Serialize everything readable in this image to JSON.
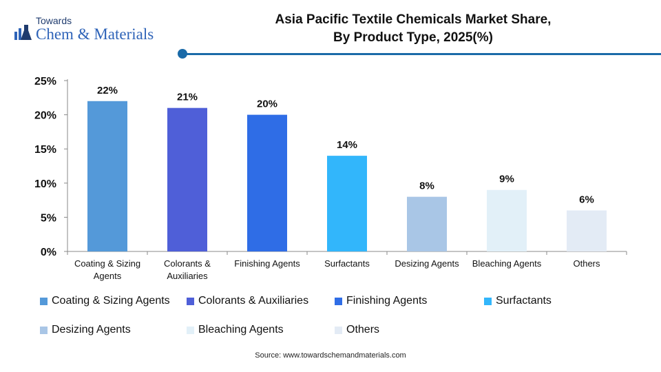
{
  "brand": {
    "small": "Towards",
    "big": "Chem & Materials"
  },
  "title_line1": "Asia Pacific Textile Chemicals Market Share,",
  "title_line2": "By Product Type, 2025(%)",
  "source": "Source: www.towardschemandmaterials.com",
  "chart_data": {
    "type": "bar",
    "categories": [
      "Coating & Sizing Agents",
      "Colorants & Auxiliaries",
      "Finishing Agents",
      "Surfactants",
      "Desizing Agents",
      "Bleaching Agents",
      "Others"
    ],
    "category_tick_lines": [
      [
        "Coating & Sizing",
        "Agents"
      ],
      [
        "Colorants &",
        "Auxiliaries"
      ],
      [
        "Finishing Agents"
      ],
      [
        "Surfactants"
      ],
      [
        "Desizing Agents"
      ],
      [
        "Bleaching Agents"
      ],
      [
        "Others"
      ]
    ],
    "values": [
      22,
      21,
      20,
      14,
      8,
      9,
      6
    ],
    "data_labels": [
      "22%",
      "21%",
      "20%",
      "14%",
      "8%",
      "9%",
      "6%"
    ],
    "colors": [
      "#5499d9",
      "#4f5fd8",
      "#2f6de6",
      "#32b6fb",
      "#a9c6e6",
      "#e2f0f8",
      "#e3ebf5"
    ],
    "ylim": [
      0,
      25
    ],
    "yticks": [
      0,
      5,
      10,
      15,
      20,
      25
    ],
    "ytick_labels": [
      "0%",
      "5%",
      "10%",
      "15%",
      "20%",
      "25%"
    ],
    "legend_labels": [
      "Coating & Sizing Agents",
      "Colorants & Auxiliaries",
      "Finishing Agents",
      "Surfactants",
      "Desizing Agents",
      "Bleaching Agents",
      "Others"
    ],
    "legend_position": "bottom",
    "grid": false
  }
}
